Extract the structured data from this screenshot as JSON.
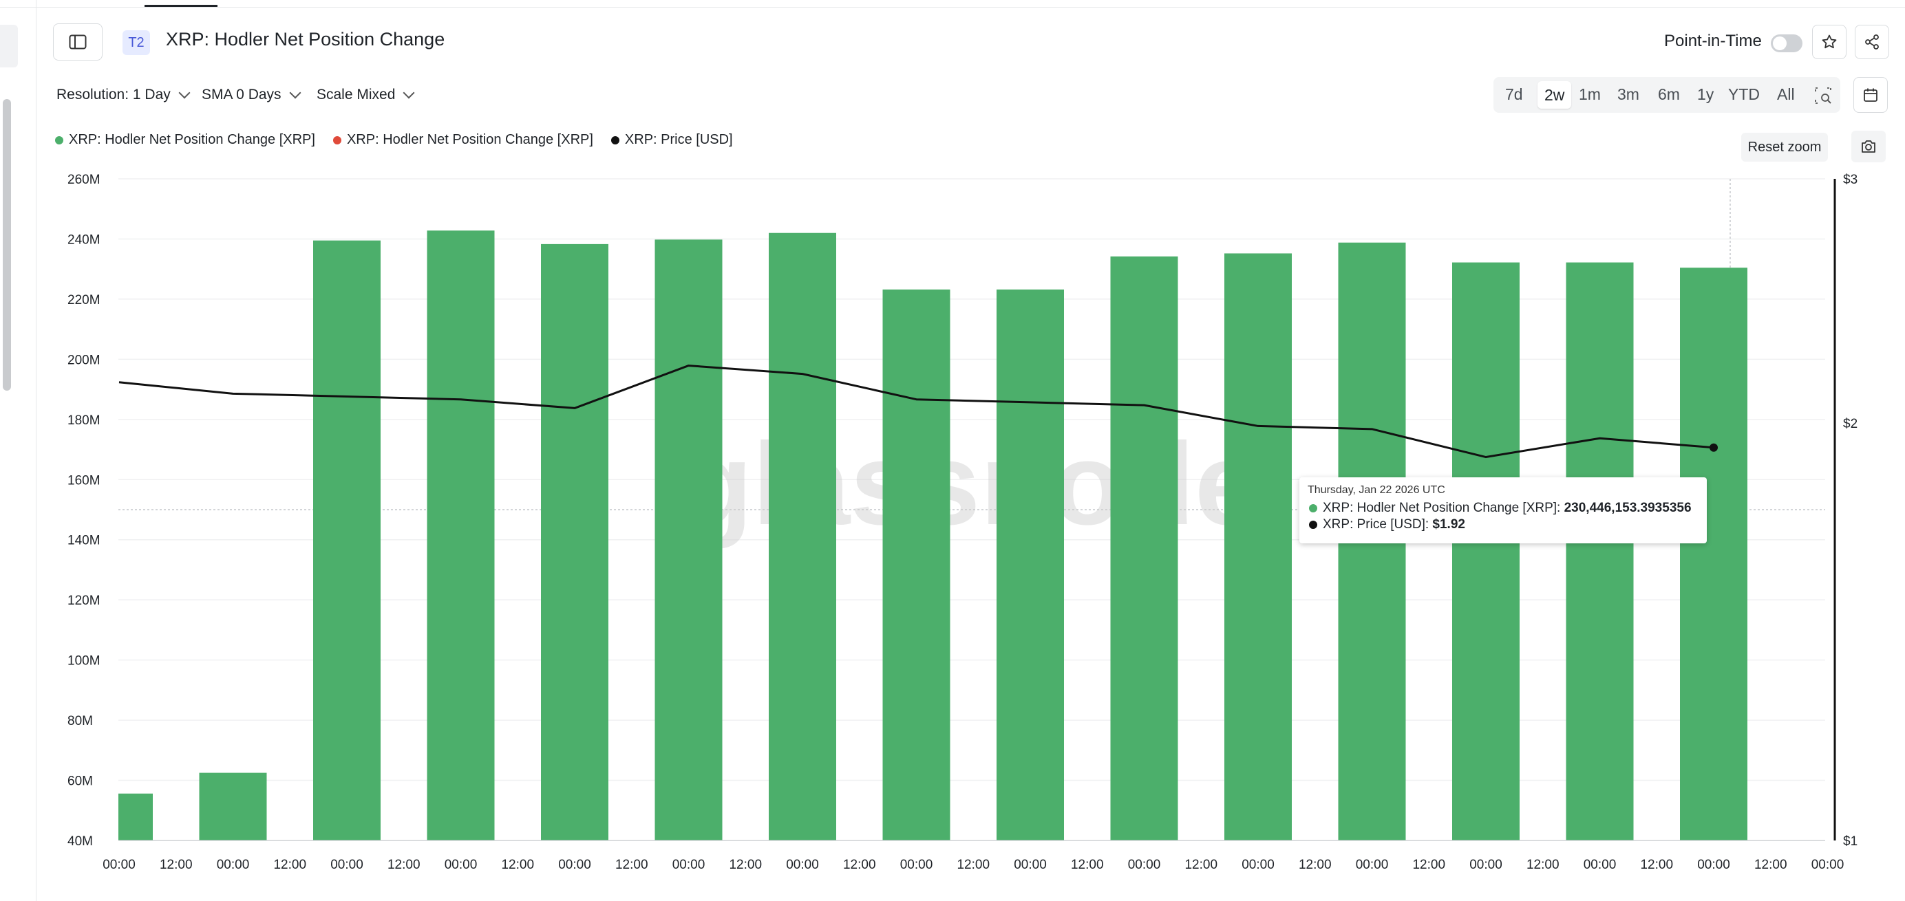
{
  "header": {
    "badge": "T2",
    "title": "XRP: Hodler Net Position Change",
    "point_in_time_label": "Point-in-Time"
  },
  "controls": {
    "resolution": "Resolution: 1 Day",
    "sma": "SMA 0 Days",
    "scale": "Scale Mixed",
    "ranges": [
      "7d",
      "2w",
      "1m",
      "3m",
      "6m",
      "1y",
      "YTD",
      "All"
    ],
    "selected_range": "2w",
    "reset_zoom": "Reset zoom"
  },
  "legend": [
    {
      "label": "XRP: Hodler Net Position Change [XRP]",
      "color": "#4caf6b"
    },
    {
      "label": "XRP: Hodler Net Position Change [XRP]",
      "color": "#e04a3a"
    },
    {
      "label": "XRP: Price [USD]",
      "color": "#111111"
    }
  ],
  "tooltip": {
    "date": "Thursday, Jan 22 2026 UTC",
    "series1_label": "XRP: Hodler Net Position Change [XRP]: ",
    "series1_value": "230,446,153.3935356",
    "series2_label": "XRP: Price [USD]: ",
    "series2_value": "$1.92"
  },
  "watermark": "glassnode",
  "chart_data": {
    "type": "bar",
    "x_tick_labels": [
      "00:00",
      "12:00",
      "00:00",
      "12:00",
      "00:00",
      "12:00",
      "00:00",
      "12:00",
      "00:00",
      "12:00",
      "00:00",
      "12:00",
      "00:00",
      "12:00",
      "00:00",
      "12:00",
      "00:00",
      "12:00",
      "00:00",
      "12:00",
      "00:00",
      "12:00",
      "00:00",
      "12:00",
      "00:00",
      "12:00",
      "00:00",
      "12:00",
      "00:00",
      "12:00",
      "00:00"
    ],
    "y_left_ticks": [
      "260M",
      "240M",
      "220M",
      "200M",
      "180M",
      "160M",
      "140M",
      "120M",
      "100M",
      "80M",
      "60M",
      "40M"
    ],
    "y_left_range": [
      40000000,
      260000000
    ],
    "y_right_ticks": [
      "$3",
      "$2",
      "$1"
    ],
    "y_right_scale": "log",
    "y_right_range": [
      1,
      3
    ],
    "bar_color": "#4caf6b",
    "series": [
      {
        "name": "XRP: Hodler Net Position Change [XRP]",
        "type": "bar",
        "values": [
          55600000,
          62500000,
          239500000,
          242800000,
          238300000,
          239800000,
          242000000,
          223200000,
          223200000,
          234200000,
          235200000,
          238800000,
          232200000,
          232200000,
          230446153.3935356
        ]
      },
      {
        "name": "XRP: Price [USD]",
        "type": "line",
        "values": [
          2.14,
          2.1,
          2.09,
          2.08,
          2.05,
          2.2,
          2.17,
          2.08,
          2.07,
          2.06,
          1.99,
          1.98,
          1.89,
          1.95,
          1.92
        ]
      }
    ],
    "legend_position": "top-left",
    "grid": true
  }
}
